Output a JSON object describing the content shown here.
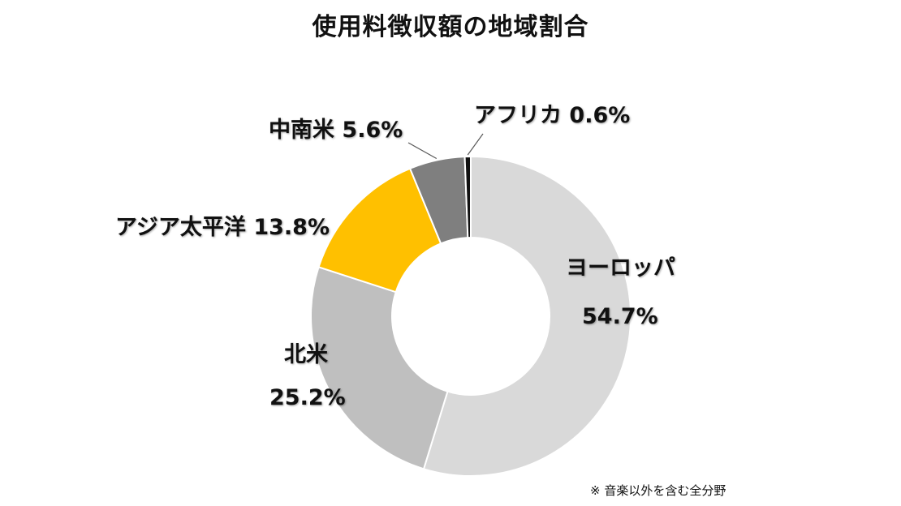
{
  "chart_data": {
    "type": "pie",
    "title": "使用料徴収額の地域割合",
    "donut": true,
    "slices": [
      {
        "label": "ヨーロッパ",
        "value": 54.7,
        "value_label": "54.7%",
        "color": "#d9d9d9"
      },
      {
        "label": "北米",
        "value": 25.2,
        "value_label": "25.2%",
        "color": "#bfbfbf"
      },
      {
        "label": "アジア太平洋",
        "value": 13.8,
        "value_label": "13.8%",
        "color": "#ffc000"
      },
      {
        "label": "中南米",
        "value": 5.6,
        "value_label": "5.6%",
        "color": "#7f7f7f"
      },
      {
        "label": "アフリカ",
        "value": 0.6,
        "value_label": "0.6%",
        "color": "#111111"
      }
    ],
    "footnote": "※ 音楽以外を含む全分野"
  }
}
